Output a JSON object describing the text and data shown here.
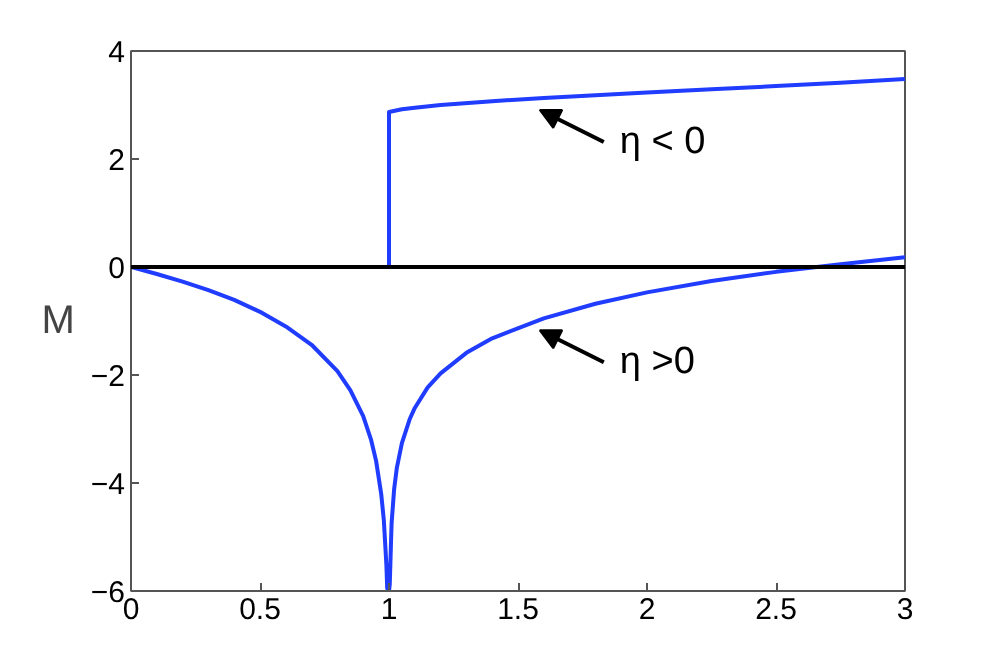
{
  "chart_data": {
    "type": "line",
    "ylabel": "M",
    "xlim": [
      0,
      3
    ],
    "ylim": [
      -6,
      4
    ],
    "xticks": [
      0,
      0.5,
      1,
      1.5,
      2,
      2.5,
      3
    ],
    "yticks": [
      -6,
      -4,
      -2,
      0,
      2,
      4
    ],
    "grid": false,
    "marker": "none",
    "line_style": "solid",
    "series": [
      {
        "color": "#1f3cff",
        "x": [
          1,
          1,
          1.05,
          1.1,
          1.2,
          1.4,
          1.6,
          1.8,
          2.0,
          2.25,
          2.5,
          2.75,
          3.0
        ],
        "values": [
          0,
          2.87,
          2.92,
          2.95,
          3.0,
          3.07,
          3.13,
          3.18,
          3.23,
          3.29,
          3.35,
          3.41,
          3.48
        ]
      },
      {
        "color": "#1f3cff",
        "x": [
          0,
          0.1,
          0.2,
          0.3,
          0.4,
          0.5,
          0.6,
          0.7,
          0.8,
          0.85,
          0.9,
          0.93,
          0.95,
          0.97,
          0.98,
          0.99,
          0.993,
          1.0,
          1.003,
          1.01,
          1.02,
          1.03,
          1.05,
          1.08,
          1.1,
          1.15,
          1.2,
          1.3,
          1.4,
          1.6,
          1.8,
          2.0,
          2.25,
          2.5,
          2.75,
          3.0
        ],
        "values": [
          0,
          -0.13,
          -0.27,
          -0.43,
          -0.61,
          -0.83,
          -1.1,
          -1.44,
          -1.93,
          -2.28,
          -2.76,
          -3.19,
          -3.59,
          -4.21,
          -4.69,
          -5.53,
          -5.95,
          -6,
          -5.87,
          -4.75,
          -4.11,
          -3.73,
          -3.26,
          -2.82,
          -2.61,
          -2.23,
          -1.97,
          -1.59,
          -1.32,
          -0.95,
          -0.68,
          -0.47,
          -0.26,
          -0.09,
          0.05,
          0.18
        ]
      }
    ],
    "ref_lines": [
      {
        "axis": "y",
        "value": 0,
        "color": "#000000"
      }
    ],
    "annotations": [
      {
        "text": "η < 0",
        "x": 1.6,
        "y": 3.13
      },
      {
        "text": "η >0",
        "x": 1.6,
        "y": -0.95
      }
    ]
  }
}
